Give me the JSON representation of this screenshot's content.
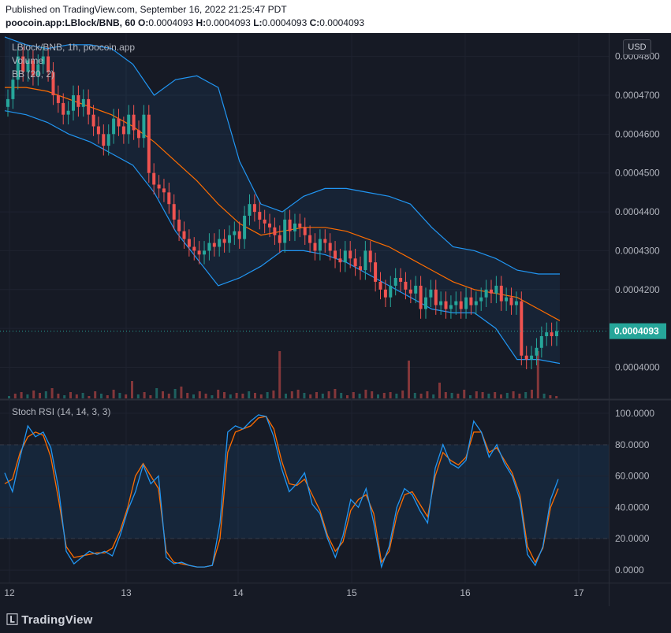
{
  "header": {
    "published": "Published on TradingView.com, September 16, 2022 21:25:47 PDT",
    "symbol": "poocoin.app:LBlock/BNB, 60",
    "o_label": "O:",
    "o_value": "0.0004093",
    "h_label": "H:",
    "h_value": "0.0004093",
    "l_label": "L:",
    "l_value": "0.0004093",
    "c_label": "C:",
    "c_value": "0.0004093"
  },
  "legend": {
    "main": "LBlock/BNB, 1h, poocoin.app",
    "volume": "Volume",
    "bb": "BB (20, 2)",
    "stoch": "Stoch RSI (14, 14, 3, 3)"
  },
  "currency_button": "USD",
  "brand": "TradingView",
  "colors": {
    "up": "#26a69a",
    "down": "#ef5350",
    "bb_band": "#2196f3",
    "bb_basis": "#ff6d00",
    "stoch_k": "#2196f3",
    "stoch_d": "#ff6d00",
    "last_price_bg": "#26a69a",
    "background": "#161a25"
  },
  "chart_data": [
    {
      "type": "candlestick",
      "title": "LBlock/BNB, 1h, poocoin.app",
      "x_ticks": [
        "12",
        "13",
        "14",
        "15",
        "16",
        "17"
      ],
      "y_ticks": [
        "0.0004000",
        "0.0004100",
        "0.0004200",
        "0.0004300",
        "0.0004400",
        "0.0004500",
        "0.0004600",
        "0.0004700",
        "0.0004800"
      ],
      "ylim": [
        0.000392,
        0.000486
      ],
      "last_price": "0.0004093",
      "grid": true,
      "series": [
        {
          "name": "Close",
          "values": [
            0.000469,
            0.000474,
            0.00048,
            0.000476,
            0.000479,
            0.000475,
            0.000478,
            0.00048,
            0.000476,
            0.00047,
            0.000468,
            0.000465,
            0.000466,
            0.00047,
            0.000467,
            0.000469,
            0.000465,
            0.000462,
            0.00046,
            0.000457,
            0.00046,
            0.000464,
            0.000462,
            0.00046,
            0.000465,
            0.000461,
            0.000459,
            0.000465,
            0.00045,
            0.000447,
            0.000446,
            0.000445,
            0.000442,
            0.000438,
            0.000435,
            0.000433,
            0.000431,
            0.00043,
            0.000429,
            0.00043,
            0.000432,
            0.000431,
            0.000433,
            0.000432,
            0.000434,
            0.000435,
            0.000433,
            0.000439,
            0.000442,
            0.00044,
            0.000438,
            0.000437,
            0.000436,
            0.000434,
            0.000432,
            0.000438,
            0.000435,
            0.000437,
            0.000436,
            0.000434,
            0.000432,
            0.00043,
            0.000433,
            0.000432,
            0.00043,
            0.000428,
            0.000427,
            0.00043,
            0.000428,
            0.000426,
            0.000425,
            0.00043,
            0.000427,
            0.000422,
            0.00042,
            0.000418,
            0.000421,
            0.000423,
            0.000422,
            0.00042,
            0.000419,
            0.000421,
            0.000415,
            0.000418,
            0.00042,
            0.000416,
            0.000417,
            0.000415,
            0.000416,
            0.000417,
            0.000415,
            0.000418,
            0.000416,
            0.000417,
            0.000418,
            0.00042,
            0.000419,
            0.000421,
            0.000417,
            0.000418,
            0.000416,
            0.000417,
            0.000403,
            0.000402,
            0.000403,
            0.000405,
            0.000408,
            0.000409,
            0.000408,
            0.0004093
          ]
        }
      ],
      "bb_upper": [
        0.000485,
        0.000483,
        0.000482,
        0.000483,
        0.000483,
        0.000482,
        0.000478,
        0.00047,
        0.000474,
        0.000475,
        0.000472,
        0.000453,
        0.000442,
        0.00044,
        0.000444,
        0.000446,
        0.000446,
        0.000445,
        0.000444,
        0.000442,
        0.000436,
        0.000431,
        0.00043,
        0.000428,
        0.000425,
        0.000424,
        0.000424
      ],
      "bb_basis": [
        0.000472,
        0.000472,
        0.000471,
        0.000469,
        0.000467,
        0.000465,
        0.000462,
        0.000458,
        0.000453,
        0.000448,
        0.000442,
        0.000437,
        0.000434,
        0.000435,
        0.000436,
        0.000436,
        0.000435,
        0.000433,
        0.000431,
        0.000428,
        0.000425,
        0.000422,
        0.00042,
        0.000419,
        0.000418,
        0.000415,
        0.000412
      ],
      "bb_lower": [
        0.000466,
        0.000465,
        0.000463,
        0.00046,
        0.000458,
        0.000455,
        0.000452,
        0.000445,
        0.000435,
        0.000428,
        0.000421,
        0.000423,
        0.000426,
        0.00043,
        0.00043,
        0.000429,
        0.000427,
        0.000424,
        0.000421,
        0.000418,
        0.000415,
        0.000414,
        0.000414,
        0.00041,
        0.000402,
        0.000402,
        0.000401
      ]
    },
    {
      "type": "bar",
      "title": "Volume",
      "values": [
        3,
        6,
        8,
        5,
        10,
        7,
        9,
        13,
        6,
        4,
        8,
        5,
        7,
        3,
        9,
        6,
        4,
        11,
        7,
        5,
        22,
        5,
        8,
        4,
        13,
        9,
        6,
        12,
        15,
        7,
        5,
        9,
        6,
        4,
        11,
        8,
        5,
        7,
        6,
        9,
        7,
        5,
        8,
        10,
        60,
        6,
        9,
        11,
        7,
        5,
        8,
        6,
        9,
        12,
        7,
        4,
        8,
        6,
        11,
        9,
        5,
        7,
        8,
        6,
        10,
        48,
        7,
        6,
        9,
        5,
        20,
        8,
        7,
        6,
        11,
        4,
        9,
        8,
        6,
        8,
        5,
        7,
        9,
        6,
        8,
        11,
        60,
        6,
        4,
        3
      ]
    },
    {
      "type": "line",
      "title": "Stoch RSI (14, 14, 3, 3)",
      "y_ticks": [
        "0.0000",
        "20.0000",
        "40.0000",
        "60.0000",
        "80.0000",
        "100.0000"
      ],
      "ylim": [
        -8,
        108
      ],
      "bands": [
        20,
        80
      ],
      "series": [
        {
          "name": "K",
          "values": [
            62,
            50,
            72,
            92,
            85,
            88,
            78,
            52,
            12,
            4,
            8,
            12,
            10,
            12,
            9,
            22,
            38,
            50,
            67,
            55,
            60,
            8,
            4,
            5,
            3,
            2,
            2,
            3,
            30,
            88,
            92,
            90,
            95,
            99,
            98,
            85,
            65,
            50,
            55,
            62,
            42,
            36,
            20,
            8,
            22,
            45,
            40,
            52,
            30,
            2,
            15,
            40,
            52,
            48,
            38,
            30,
            65,
            80,
            68,
            65,
            70,
            95,
            88,
            72,
            80,
            68,
            60,
            45,
            10,
            3,
            15,
            45,
            58
          ]
        },
        {
          "name": "D",
          "values": [
            55,
            58,
            75,
            85,
            88,
            86,
            72,
            45,
            15,
            8,
            9,
            10,
            11,
            11,
            14,
            25,
            40,
            60,
            68,
            60,
            52,
            12,
            5,
            4,
            3,
            2,
            2,
            3,
            20,
            75,
            88,
            90,
            92,
            97,
            98,
            90,
            70,
            55,
            54,
            58,
            48,
            38,
            22,
            12,
            18,
            38,
            45,
            48,
            36,
            5,
            12,
            35,
            48,
            50,
            42,
            34,
            60,
            75,
            70,
            67,
            72,
            88,
            88,
            75,
            78,
            70,
            62,
            48,
            15,
            5,
            14,
            40,
            52
          ]
        }
      ]
    }
  ]
}
